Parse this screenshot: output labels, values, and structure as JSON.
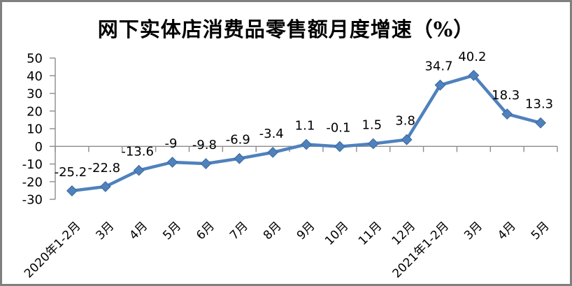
{
  "frame": {
    "background": "#ffffff",
    "border_color": "#808080"
  },
  "chart_data": {
    "type": "line",
    "title": "网下实体店消费品零售额月度增速（%）",
    "categories": [
      "2020年1-2月",
      "3月",
      "4月",
      "5月",
      "6月",
      "7月",
      "8月",
      "9月",
      "10月",
      "11月",
      "12月",
      "2021年1-2月",
      "3月",
      "4月",
      "5月"
    ],
    "values": [
      -25.2,
      -22.8,
      -13.6,
      -9,
      -9.8,
      -6.9,
      -3.4,
      1.1,
      -0.1,
      1.5,
      3.8,
      34.7,
      40.2,
      18.3,
      13.3
    ],
    "point_labels": [
      "-25.2",
      "-22.8",
      "-13.6",
      "-9",
      "-9.8",
      "-6.9",
      "-3.4",
      "1.1",
      "-0.1",
      "1.5",
      "3.8",
      "34.7",
      "40.2",
      "18.3",
      "13.3"
    ],
    "yticks": [
      50,
      40,
      30,
      20,
      10,
      0,
      -10,
      -20,
      -30
    ],
    "ylim": [
      -30,
      50
    ],
    "xlabel": "",
    "ylabel": "",
    "grid": false,
    "legend": "none",
    "marker": "diamond",
    "colors": {
      "series": "#4F81BD",
      "marker_border": "#3A679C",
      "axis": "#8C8C8C",
      "text": "#000000"
    }
  }
}
